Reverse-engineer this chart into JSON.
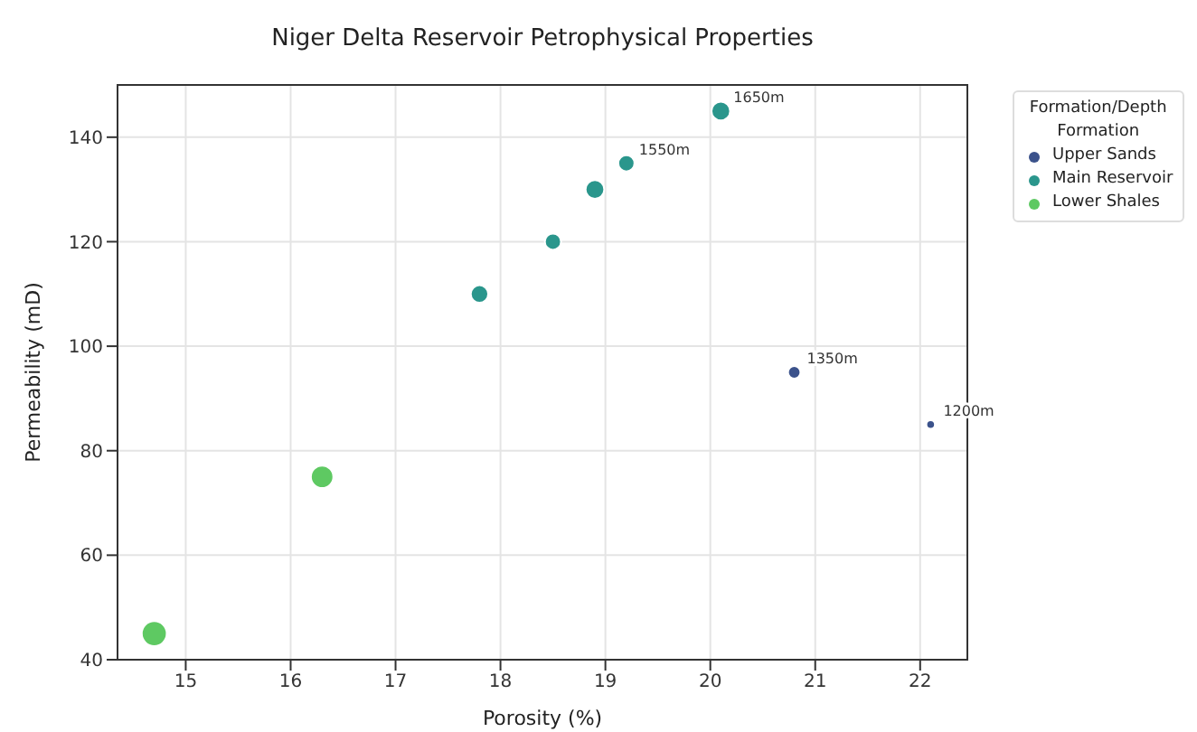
{
  "chart_data": {
    "type": "bubble",
    "title": "Niger Delta Reservoir Petrophysical Properties",
    "xlabel": "Porosity (%)",
    "ylabel": "Permeability (mD)",
    "legend_title": "Formation/Depth",
    "series": [
      {
        "name": "Upper Sands",
        "color": "#3b528b",
        "x": [
          22.1,
          20.8
        ],
        "values": [
          85,
          95
        ],
        "sizes": [
          0.12,
          0.25
        ]
      },
      {
        "name": "Main Reservoir",
        "color": "#2a968c",
        "x": [
          20.1,
          19.2,
          18.9,
          18.5,
          17.8
        ],
        "values": [
          145,
          135,
          130,
          120,
          110
        ],
        "sizes": [
          0.56,
          0.42,
          0.56,
          0.42,
          0.49
        ]
      },
      {
        "name": "Lower Shales",
        "color": "#5ec962",
        "x": [
          16.3,
          14.7
        ],
        "values": [
          75,
          45
        ],
        "sizes": [
          0.81,
          1
        ]
      }
    ],
    "annotations": [
      "Formation",
      {
        "text": "1650m",
        "x": 20.1,
        "y": 145
      },
      {
        "text": "1550m",
        "x": 19.2,
        "y": 135
      },
      {
        "text": "1350m",
        "x": 20.8,
        "y": 95
      },
      {
        "text": "1200m",
        "x": 22.1,
        "y": 85
      }
    ],
    "xlim": [
      14.35,
      22.45
    ],
    "xticks": [
      15,
      16,
      17,
      18,
      19,
      20,
      21,
      22
    ],
    "ylim": [
      40,
      150
    ],
    "yticks": [
      40,
      60,
      80,
      100,
      120,
      140
    ],
    "grid": true,
    "legend": "right"
  }
}
